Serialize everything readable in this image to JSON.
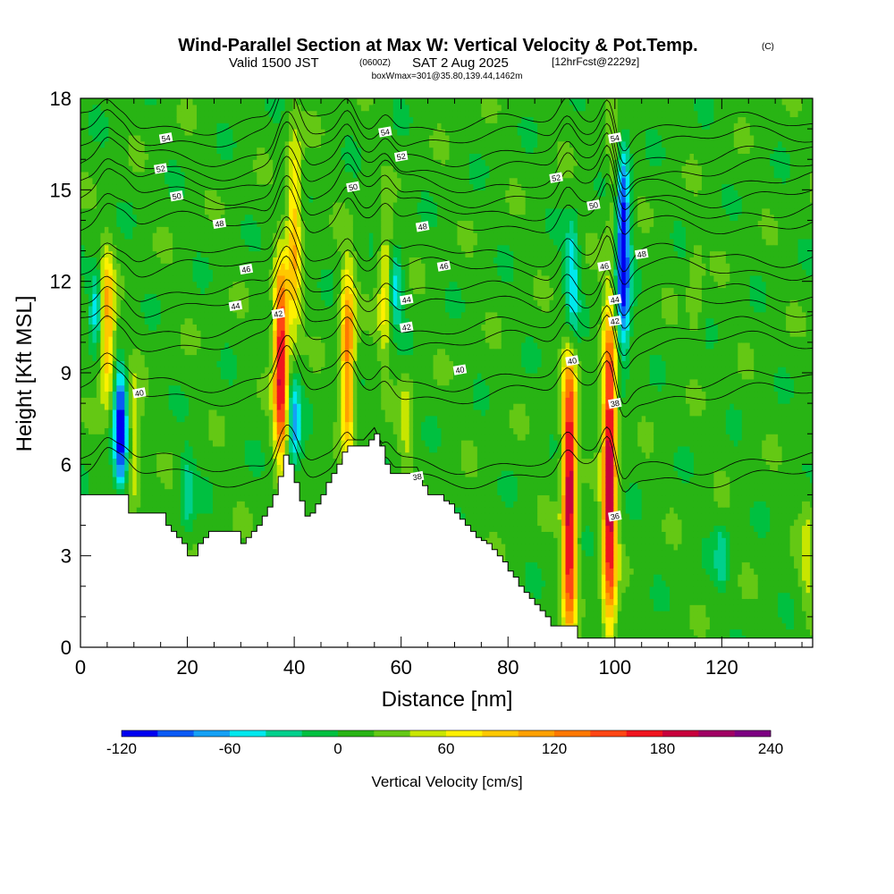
{
  "chart_data": {
    "type": "heatmap",
    "title": "Wind-Parallel Section at Max W: Vertical Velocity & Pot.Temp.",
    "title_tag": "(C)",
    "subtitle": {
      "valid": "Valid 1500 JST",
      "zulu": "(0600Z)",
      "date": "SAT 2 Aug 2025",
      "fcst": "[12hrFcst@2229z]"
    },
    "boxinfo": "boxWmax=301@35.80,139.44,1462m",
    "xlabel": "Distance [nm]",
    "ylabel": "Height [Kft MSL]",
    "xlim": [
      0,
      137
    ],
    "ylim": [
      0,
      18
    ],
    "x_ticks": [
      "0",
      "20",
      "40",
      "60",
      "80",
      "100",
      "120"
    ],
    "x_tick_values": [
      0,
      20,
      40,
      60,
      80,
      100,
      120
    ],
    "y_ticks": [
      "0",
      "3",
      "6",
      "9",
      "12",
      "15",
      "18"
    ],
    "y_tick_values": [
      0,
      3,
      6,
      9,
      12,
      15,
      18
    ],
    "colorbar": {
      "title": "Vertical Velocity [cm/s]",
      "min": -120,
      "max": 240,
      "step": 20,
      "labels": [
        "-120",
        "-60",
        "0",
        "60",
        "120",
        "180",
        "240"
      ],
      "label_values": [
        -120,
        -60,
        0,
        60,
        120,
        180,
        240
      ],
      "colors": [
        "#0000f0",
        "#0a5af5",
        "#14a0f5",
        "#00e8ee",
        "#00d08c",
        "#00c040",
        "#28b414",
        "#64c814",
        "#c8e600",
        "#fff000",
        "#ffc800",
        "#ffa000",
        "#ff7800",
        "#ff4614",
        "#f0141e",
        "#c8003c",
        "#a00064",
        "#7d0082"
      ]
    },
    "background_w": 10,
    "updrafts": [
      {
        "x": 5,
        "y": [
          8,
          13
        ],
        "w": 110
      },
      {
        "x": 10,
        "y": [
          4.5,
          9
        ],
        "w": 55
      },
      {
        "x": 37.5,
        "y": [
          6.2,
          12.5
        ],
        "w": 190
      },
      {
        "x": 40,
        "y": [
          10,
          17
        ],
        "w": 90
      },
      {
        "x": 50,
        "y": [
          6.5,
          12.5
        ],
        "w": 130
      },
      {
        "x": 57,
        "y": [
          9.5,
          14
        ],
        "w": 70
      },
      {
        "x": 61,
        "y": [
          5.8,
          9
        ],
        "w": 45
      },
      {
        "x": 91.5,
        "y": [
          0.5,
          9.5
        ],
        "w": 200
      },
      {
        "x": 99,
        "y": [
          0.5,
          11
        ],
        "w": 200
      },
      {
        "x": 100,
        "y": [
          13,
          17.5
        ],
        "w": 45
      },
      {
        "x": 115,
        "y": [
          10,
          13.5
        ],
        "w": 40
      },
      {
        "x": 136,
        "y": [
          1,
          5
        ],
        "w": 45
      }
    ],
    "downdrafts": [
      {
        "x": 7.5,
        "y": [
          5.2,
          9.2
        ],
        "w": -110
      },
      {
        "x": 3,
        "y": [
          10,
          12.5
        ],
        "w": -50
      },
      {
        "x": 40,
        "y": [
          5.8,
          9
        ],
        "w": -60
      },
      {
        "x": 59,
        "y": [
          10.5,
          13
        ],
        "w": -50
      },
      {
        "x": 92,
        "y": [
          10,
          14
        ],
        "w": -55
      },
      {
        "x": 101.5,
        "y": [
          9.5,
          16.5
        ],
        "w": -120
      },
      {
        "x": 20,
        "y": [
          3.8,
          6.5
        ],
        "w": -30
      },
      {
        "x": 120,
        "y": [
          2,
          4
        ],
        "w": -30
      }
    ],
    "terrain_x": [
      0,
      3,
      5,
      7,
      9,
      10,
      12,
      15,
      16,
      17,
      18,
      19,
      20,
      21,
      22,
      23,
      24,
      25,
      26,
      27,
      28,
      29,
      30,
      31,
      32,
      33,
      34,
      35,
      36,
      37,
      38,
      39,
      40,
      41,
      42,
      43,
      44,
      45,
      46,
      47,
      48,
      49,
      50,
      51,
      52,
      53,
      54,
      55,
      56,
      57,
      58,
      59,
      60,
      61,
      62,
      63,
      64,
      65,
      66,
      67,
      68,
      69,
      70,
      71,
      72,
      73,
      74,
      75,
      76,
      77,
      78,
      79,
      80,
      81,
      82,
      83,
      84,
      85,
      86,
      87,
      88,
      89,
      90,
      91,
      92,
      93,
      94,
      95,
      137
    ],
    "terrain_h": [
      5,
      5,
      5,
      5,
      4.4,
      4.4,
      4.4,
      4.4,
      4,
      3.8,
      3.6,
      3.4,
      3.0,
      3.0,
      3.4,
      3.6,
      3.8,
      3.8,
      3.8,
      3.8,
      3.8,
      3.8,
      3.4,
      3.6,
      3.8,
      4.0,
      4.3,
      4.6,
      5.0,
      5.6,
      6.3,
      6.0,
      5.4,
      4.8,
      4.3,
      4.4,
      4.7,
      5.0,
      5.4,
      5.7,
      6.0,
      6.4,
      6.6,
      6.6,
      6.6,
      6.6,
      6.8,
      7.0,
      6.6,
      6.0,
      5.7,
      5.7,
      5.7,
      5.7,
      5.7,
      5.7,
      5.3,
      5.0,
      5.0,
      5.0,
      4.8,
      4.7,
      4.4,
      4.2,
      4.0,
      3.8,
      3.6,
      3.5,
      3.4,
      3.2,
      3.0,
      2.8,
      2.5,
      2.3,
      2.0,
      1.8,
      1.6,
      1.4,
      1.2,
      1.0,
      0.7,
      0.7,
      0.7,
      0.7,
      0.7,
      0.3,
      0.3,
      0.3,
      0.3
    ],
    "theta_contours": [
      {
        "level": "38",
        "base": 5.6,
        "label_x": 63
      },
      {
        "level": "40",
        "base": 8.3,
        "label_x": 11
      },
      {
        "level": "42",
        "base": 10.0,
        "label_x": 37
      },
      {
        "level": "44",
        "base": 11.2,
        "label_x": 29
      },
      {
        "level": "46",
        "base": 12.4,
        "label_x": 31
      },
      {
        "level": "48",
        "base": 13.9,
        "label_x": 26
      },
      {
        "level": "50",
        "base": 14.8,
        "label_x": 18
      },
      {
        "level": "52",
        "base": 15.7,
        "label_x": 15
      },
      {
        "level": "54",
        "base": 16.7,
        "label_x": 16
      }
    ],
    "extra_contour_labels": [
      {
        "level": "54",
        "x": 57,
        "y": 16.9
      },
      {
        "level": "52",
        "x": 60,
        "y": 16.1
      },
      {
        "level": "50",
        "x": 51,
        "y": 15.1
      },
      {
        "level": "48",
        "x": 64,
        "y": 13.8
      },
      {
        "level": "46",
        "x": 68,
        "y": 12.5
      },
      {
        "level": "44",
        "x": 61,
        "y": 11.4
      },
      {
        "level": "42",
        "x": 61,
        "y": 10.5
      },
      {
        "level": "40",
        "x": 71,
        "y": 9.1
      },
      {
        "level": "40",
        "x": 92,
        "y": 9.4
      },
      {
        "level": "38",
        "x": 100,
        "y": 8.0
      },
      {
        "level": "36",
        "x": 100,
        "y": 4.3
      },
      {
        "level": "54",
        "x": 100,
        "y": 16.7
      },
      {
        "level": "52",
        "x": 89,
        "y": 15.4
      },
      {
        "level": "50",
        "x": 96,
        "y": 14.5
      },
      {
        "level": "48",
        "x": 105,
        "y": 12.9
      },
      {
        "level": "46",
        "x": 98,
        "y": 12.5
      },
      {
        "level": "44",
        "x": 100,
        "y": 11.4
      },
      {
        "level": "42",
        "x": 100,
        "y": 10.7
      }
    ]
  }
}
